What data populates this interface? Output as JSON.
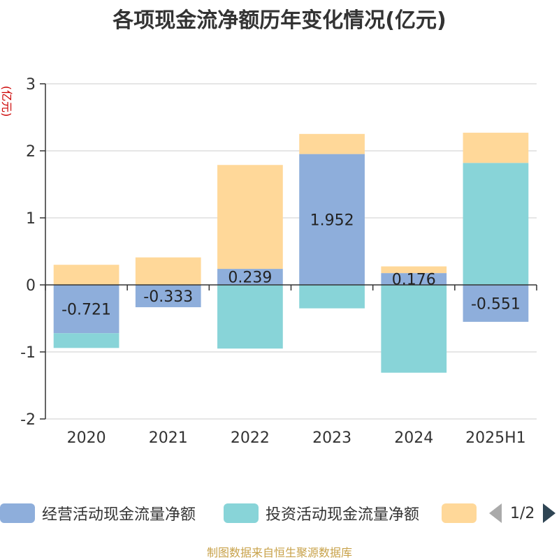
{
  "title": "各项现金流净额历年变化情况(亿元)",
  "chart_data": {
    "type": "bar",
    "stacked": true,
    "ylabel": "(亿元)",
    "ylim": [
      -2,
      3
    ],
    "yticks": [
      -2,
      -1,
      0,
      1,
      2,
      3
    ],
    "categories": [
      "2020",
      "2021",
      "2022",
      "2023",
      "2024",
      "2025H1"
    ],
    "series": [
      {
        "name": "经营活动现金流量净额",
        "color": "#8eaedb",
        "values": [
          -0.721,
          -0.333,
          0.239,
          1.952,
          0.176,
          -0.551
        ],
        "show_labels": true
      },
      {
        "name": "投资活动现金流量净额",
        "color": "#88d4d8",
        "values": [
          -0.22,
          0.0,
          -0.95,
          -0.35,
          -1.31,
          1.82
        ],
        "show_labels": false
      },
      {
        "name": "",
        "color": "#ffd899",
        "values": [
          0.3,
          0.41,
          1.55,
          0.3,
          0.1,
          0.45
        ],
        "show_labels": false
      }
    ],
    "grid": true,
    "legend_position": "bottom"
  },
  "legend": {
    "page_text": "1/2"
  },
  "source": "制图数据来自恒生聚源数据库"
}
